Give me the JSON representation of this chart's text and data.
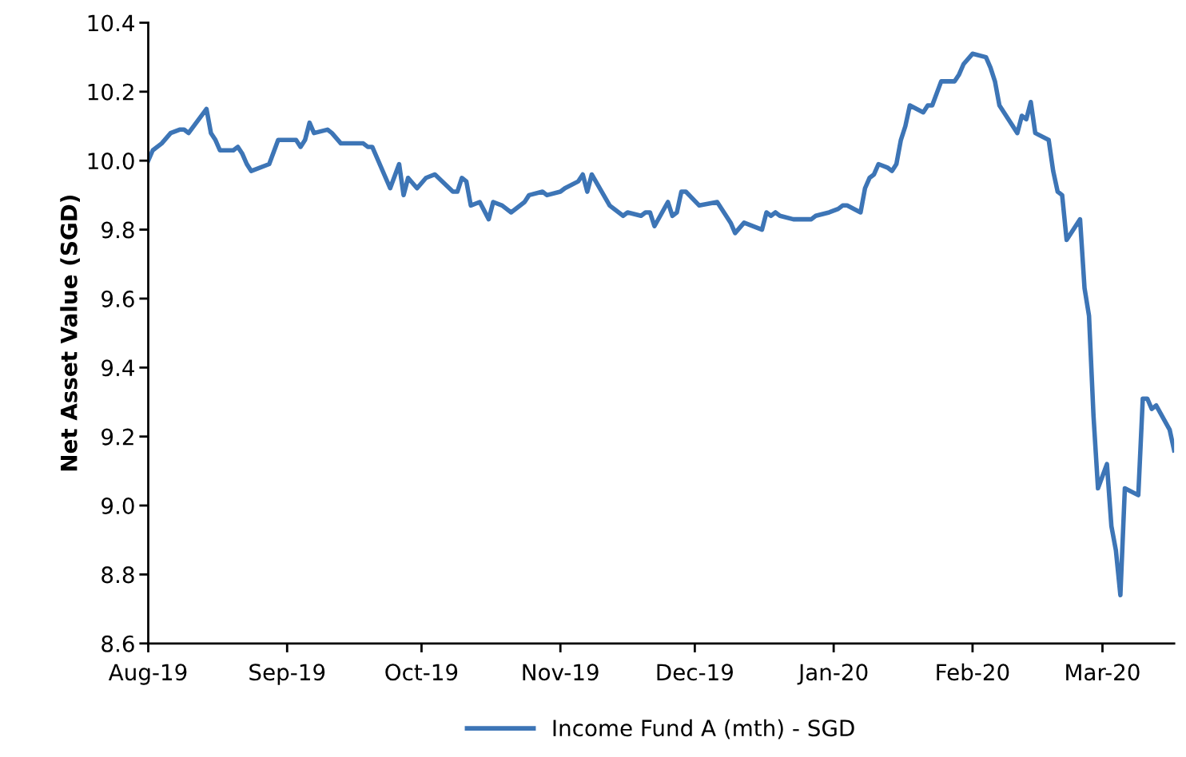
{
  "chart_data": {
    "type": "line",
    "ylabel": "Net Asset Value (SGD)",
    "x": [
      "2019-08-01",
      "2019-08-02",
      "2019-08-04",
      "2019-08-06",
      "2019-08-08",
      "2019-08-09",
      "2019-08-10",
      "2019-08-14",
      "2019-08-15",
      "2019-08-16",
      "2019-08-17",
      "2019-08-20",
      "2019-08-21",
      "2019-08-22",
      "2019-08-23",
      "2019-08-24",
      "2019-08-28",
      "2019-08-30",
      "2019-09-03",
      "2019-09-04",
      "2019-09-05",
      "2019-09-06",
      "2019-09-07",
      "2019-09-10",
      "2019-09-11",
      "2019-09-13",
      "2019-09-16",
      "2019-09-18",
      "2019-09-19",
      "2019-09-20",
      "2019-09-24",
      "2019-09-26",
      "2019-09-27",
      "2019-09-28",
      "2019-09-30",
      "2019-10-02",
      "2019-10-04",
      "2019-10-08",
      "2019-10-09",
      "2019-10-10",
      "2019-10-11",
      "2019-10-12",
      "2019-10-14",
      "2019-10-16",
      "2019-10-17",
      "2019-10-19",
      "2019-10-21",
      "2019-10-24",
      "2019-10-25",
      "2019-10-28",
      "2019-10-29",
      "2019-11-01",
      "2019-11-02",
      "2019-11-05",
      "2019-11-06",
      "2019-11-07",
      "2019-11-08",
      "2019-11-12",
      "2019-11-15",
      "2019-11-16",
      "2019-11-19",
      "2019-11-20",
      "2019-11-21",
      "2019-11-22",
      "2019-11-25",
      "2019-11-26",
      "2019-11-27",
      "2019-11-28",
      "2019-11-29",
      "2019-12-02",
      "2019-12-06",
      "2019-12-09",
      "2019-12-10",
      "2019-12-12",
      "2019-12-16",
      "2019-12-17",
      "2019-12-18",
      "2019-12-19",
      "2019-12-20",
      "2019-12-23",
      "2019-12-27",
      "2019-12-28",
      "2019-12-31",
      "2020-01-02",
      "2020-01-03",
      "2020-01-04",
      "2020-01-07",
      "2020-01-08",
      "2020-01-09",
      "2020-01-10",
      "2020-01-11",
      "2020-01-13",
      "2020-01-14",
      "2020-01-15",
      "2020-01-16",
      "2020-01-17",
      "2020-01-18",
      "2020-01-21",
      "2020-01-22",
      "2020-01-23",
      "2020-01-25",
      "2020-01-28",
      "2020-01-29",
      "2020-01-30",
      "2020-02-01",
      "2020-02-04",
      "2020-02-05",
      "2020-02-06",
      "2020-02-07",
      "2020-02-11",
      "2020-02-12",
      "2020-02-13",
      "2020-02-14",
      "2020-02-15",
      "2020-02-18",
      "2020-02-19",
      "2020-02-20",
      "2020-02-21",
      "2020-02-22",
      "2020-02-25",
      "2020-02-26",
      "2020-02-27",
      "2020-02-28",
      "2020-02-29",
      "2020-03-02",
      "2020-03-03",
      "2020-03-04",
      "2020-03-05",
      "2020-03-06",
      "2020-03-09",
      "2020-03-10",
      "2020-03-11",
      "2020-03-12",
      "2020-03-13",
      "2020-03-16",
      "2020-03-17"
    ],
    "series": [
      {
        "name": "Income Fund A (mth) - SGD",
        "color": "#3d75b6",
        "values": [
          10.0,
          10.03,
          10.05,
          10.08,
          10.09,
          10.09,
          10.08,
          10.15,
          10.08,
          10.06,
          10.03,
          10.03,
          10.04,
          10.02,
          9.99,
          9.97,
          9.99,
          10.06,
          10.06,
          10.04,
          10.06,
          10.11,
          10.08,
          10.09,
          10.08,
          10.05,
          10.05,
          10.05,
          10.04,
          10.04,
          9.92,
          9.99,
          9.9,
          9.95,
          9.92,
          9.95,
          9.96,
          9.91,
          9.91,
          9.95,
          9.94,
          9.87,
          9.88,
          9.83,
          9.88,
          9.87,
          9.85,
          9.88,
          9.9,
          9.91,
          9.9,
          9.91,
          9.92,
          9.94,
          9.96,
          9.91,
          9.96,
          9.87,
          9.84,
          9.85,
          9.84,
          9.85,
          9.85,
          9.81,
          9.88,
          9.84,
          9.85,
          9.91,
          9.91,
          9.87,
          9.88,
          9.82,
          9.79,
          9.82,
          9.8,
          9.85,
          9.84,
          9.85,
          9.84,
          9.83,
          9.83,
          9.84,
          9.85,
          9.86,
          9.87,
          9.87,
          9.85,
          9.92,
          9.95,
          9.96,
          9.99,
          9.98,
          9.97,
          9.99,
          10.06,
          10.1,
          10.16,
          10.14,
          10.16,
          10.16,
          10.23,
          10.23,
          10.25,
          10.28,
          10.31,
          10.3,
          10.27,
          10.23,
          10.16,
          10.08,
          10.13,
          10.12,
          10.17,
          10.08,
          10.06,
          9.97,
          9.91,
          9.9,
          9.77,
          9.83,
          9.63,
          9.55,
          9.26,
          9.05,
          9.12,
          8.94,
          8.87,
          8.74,
          9.05,
          9.03,
          9.31,
          9.31,
          9.28,
          9.29,
          9.22,
          9.16
        ]
      }
    ],
    "xlim": [
      "2019-08-01",
      "2020-03-17"
    ],
    "xticks": [
      {
        "value": "2019-08-01",
        "label": "Aug-19"
      },
      {
        "value": "2019-09-01",
        "label": "Sep-19"
      },
      {
        "value": "2019-10-01",
        "label": "Oct-19"
      },
      {
        "value": "2019-11-01",
        "label": "Nov-19"
      },
      {
        "value": "2019-12-01",
        "label": "Dec-19"
      },
      {
        "value": "2020-01-01",
        "label": "Jan-20"
      },
      {
        "value": "2020-02-01",
        "label": "Feb-20"
      },
      {
        "value": "2020-03-01",
        "label": "Mar-20"
      }
    ],
    "ylim": [
      8.6,
      10.4
    ],
    "yticks": [
      {
        "value": 8.6,
        "label": "8.6"
      },
      {
        "value": 8.8,
        "label": "8.8"
      },
      {
        "value": 9.0,
        "label": "9.0"
      },
      {
        "value": 9.2,
        "label": "9.2"
      },
      {
        "value": 9.4,
        "label": "9.4"
      },
      {
        "value": 9.6,
        "label": "9.6"
      },
      {
        "value": 9.8,
        "label": "9.8"
      },
      {
        "value": 10.0,
        "label": "10.0"
      },
      {
        "value": 10.2,
        "label": "10.2"
      },
      {
        "value": 10.4,
        "label": "10.4"
      }
    ],
    "grid": false,
    "legend": "bottom",
    "marker": "none",
    "line_style": "solid"
  }
}
